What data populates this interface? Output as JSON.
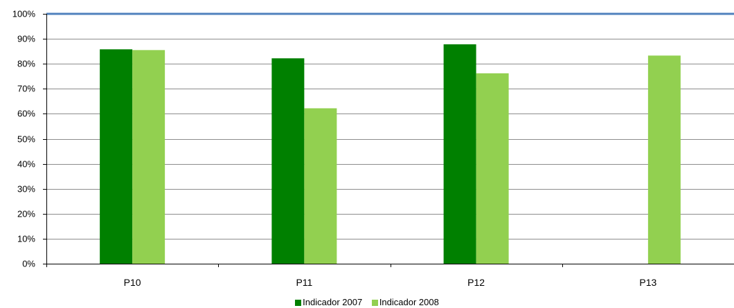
{
  "chart_data": {
    "type": "bar",
    "title": "",
    "xlabel": "",
    "ylabel": "",
    "categories": [
      "P10",
      "P11",
      "P12",
      "P13"
    ],
    "series": [
      {
        "name": "Indicador 2007",
        "color": "#008000",
        "values": [
          85.8,
          82.2,
          87.8,
          null
        ]
      },
      {
        "name": "Indicador 2008",
        "color": "#92D050",
        "values": [
          85.5,
          62.2,
          76.2,
          83.3
        ]
      }
    ],
    "ylim": [
      0,
      100
    ],
    "yticks": [
      "0%",
      "10%",
      "20%",
      "30%",
      "40%",
      "50%",
      "60%",
      "70%",
      "80%",
      "90%",
      "100%"
    ],
    "reference_line": {
      "value": 100,
      "color": "#4F81BD"
    },
    "grid": true,
    "legend_position": "bottom"
  }
}
